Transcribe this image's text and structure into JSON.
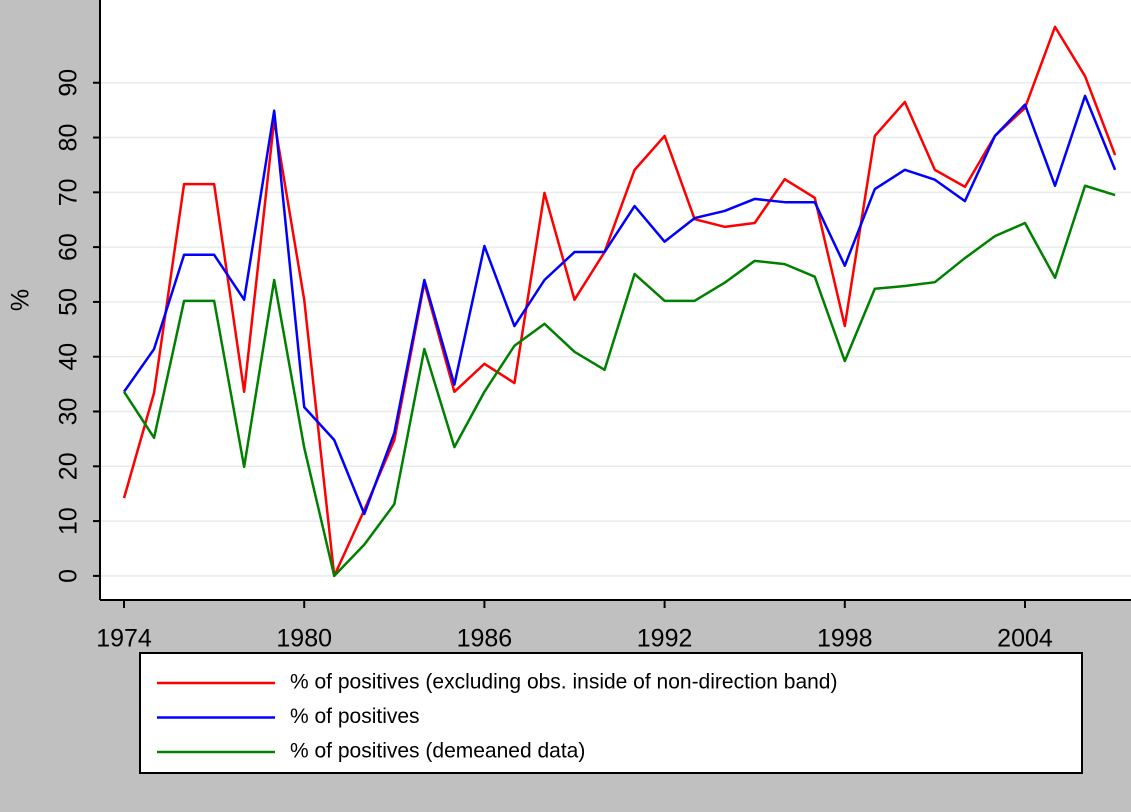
{
  "chart_data": {
    "type": "line",
    "ylabel": "%",
    "x": [
      1974,
      1975,
      1976,
      1977,
      1978,
      1979,
      1980,
      1981,
      1982,
      1983,
      1984,
      1985,
      1986,
      1987,
      1988,
      1989,
      1990,
      1991,
      1992,
      1993,
      1994,
      1995,
      1996,
      1997,
      1998,
      1999,
      2000,
      2001,
      2002,
      2003,
      2004,
      2005,
      2006,
      2007
    ],
    "series": [
      {
        "name": "% of positives (excluding obs. inside of non-direction band)",
        "color": "#ff0000",
        "values": [
          14.2,
          33.4,
          71.5,
          71.5,
          33.6,
          83.2,
          50.4,
          0,
          12,
          24.8,
          53.5,
          33.6,
          38.7,
          35.2,
          69.9,
          50.4,
          59.1,
          74.1,
          80.3,
          65.1,
          63.7,
          64.4,
          72.4,
          69,
          45.6,
          80.3,
          86.5,
          74.1,
          71,
          80.3,
          85.4,
          100.2,
          91.2,
          76.8
        ]
      },
      {
        "name": "% of positives",
        "color": "#0000ff",
        "values": [
          33.6,
          41.4,
          58.6,
          58.6,
          50.4,
          84.9,
          30.8,
          24.8,
          11.3,
          26.1,
          54,
          34.9,
          60.2,
          45.6,
          54,
          59.1,
          59.1,
          67.5,
          61,
          65.3,
          66.6,
          68.8,
          68.2,
          68.2,
          56.6,
          70.6,
          74.1,
          72.3,
          68.4,
          80.3,
          86,
          71.2,
          87.6,
          74.1
        ]
      },
      {
        "name": "% of positives (demeaned data)",
        "color": "#008000",
        "values": [
          33.6,
          25.2,
          50.2,
          50.2,
          19.9,
          54,
          23.4,
          0,
          5.7,
          13.1,
          41.4,
          23.5,
          33.6,
          42,
          46,
          40.9,
          37.6,
          55.1,
          50.2,
          50.2,
          53.5,
          57.5,
          56.9,
          54.6,
          39.2,
          52.4,
          52.9,
          53.6,
          58,
          62,
          64.4,
          54.4,
          71.2,
          69.5
        ]
      }
    ],
    "xlim": [
      1973.2,
      2007.53
    ],
    "xticks": [
      1974,
      1980,
      1986,
      1992,
      1998,
      2004
    ],
    "ylim": [
      -4.4,
      105.1
    ],
    "yticks": [
      0,
      10,
      20,
      30,
      40,
      50,
      60,
      70,
      80,
      90
    ],
    "grid": true
  }
}
